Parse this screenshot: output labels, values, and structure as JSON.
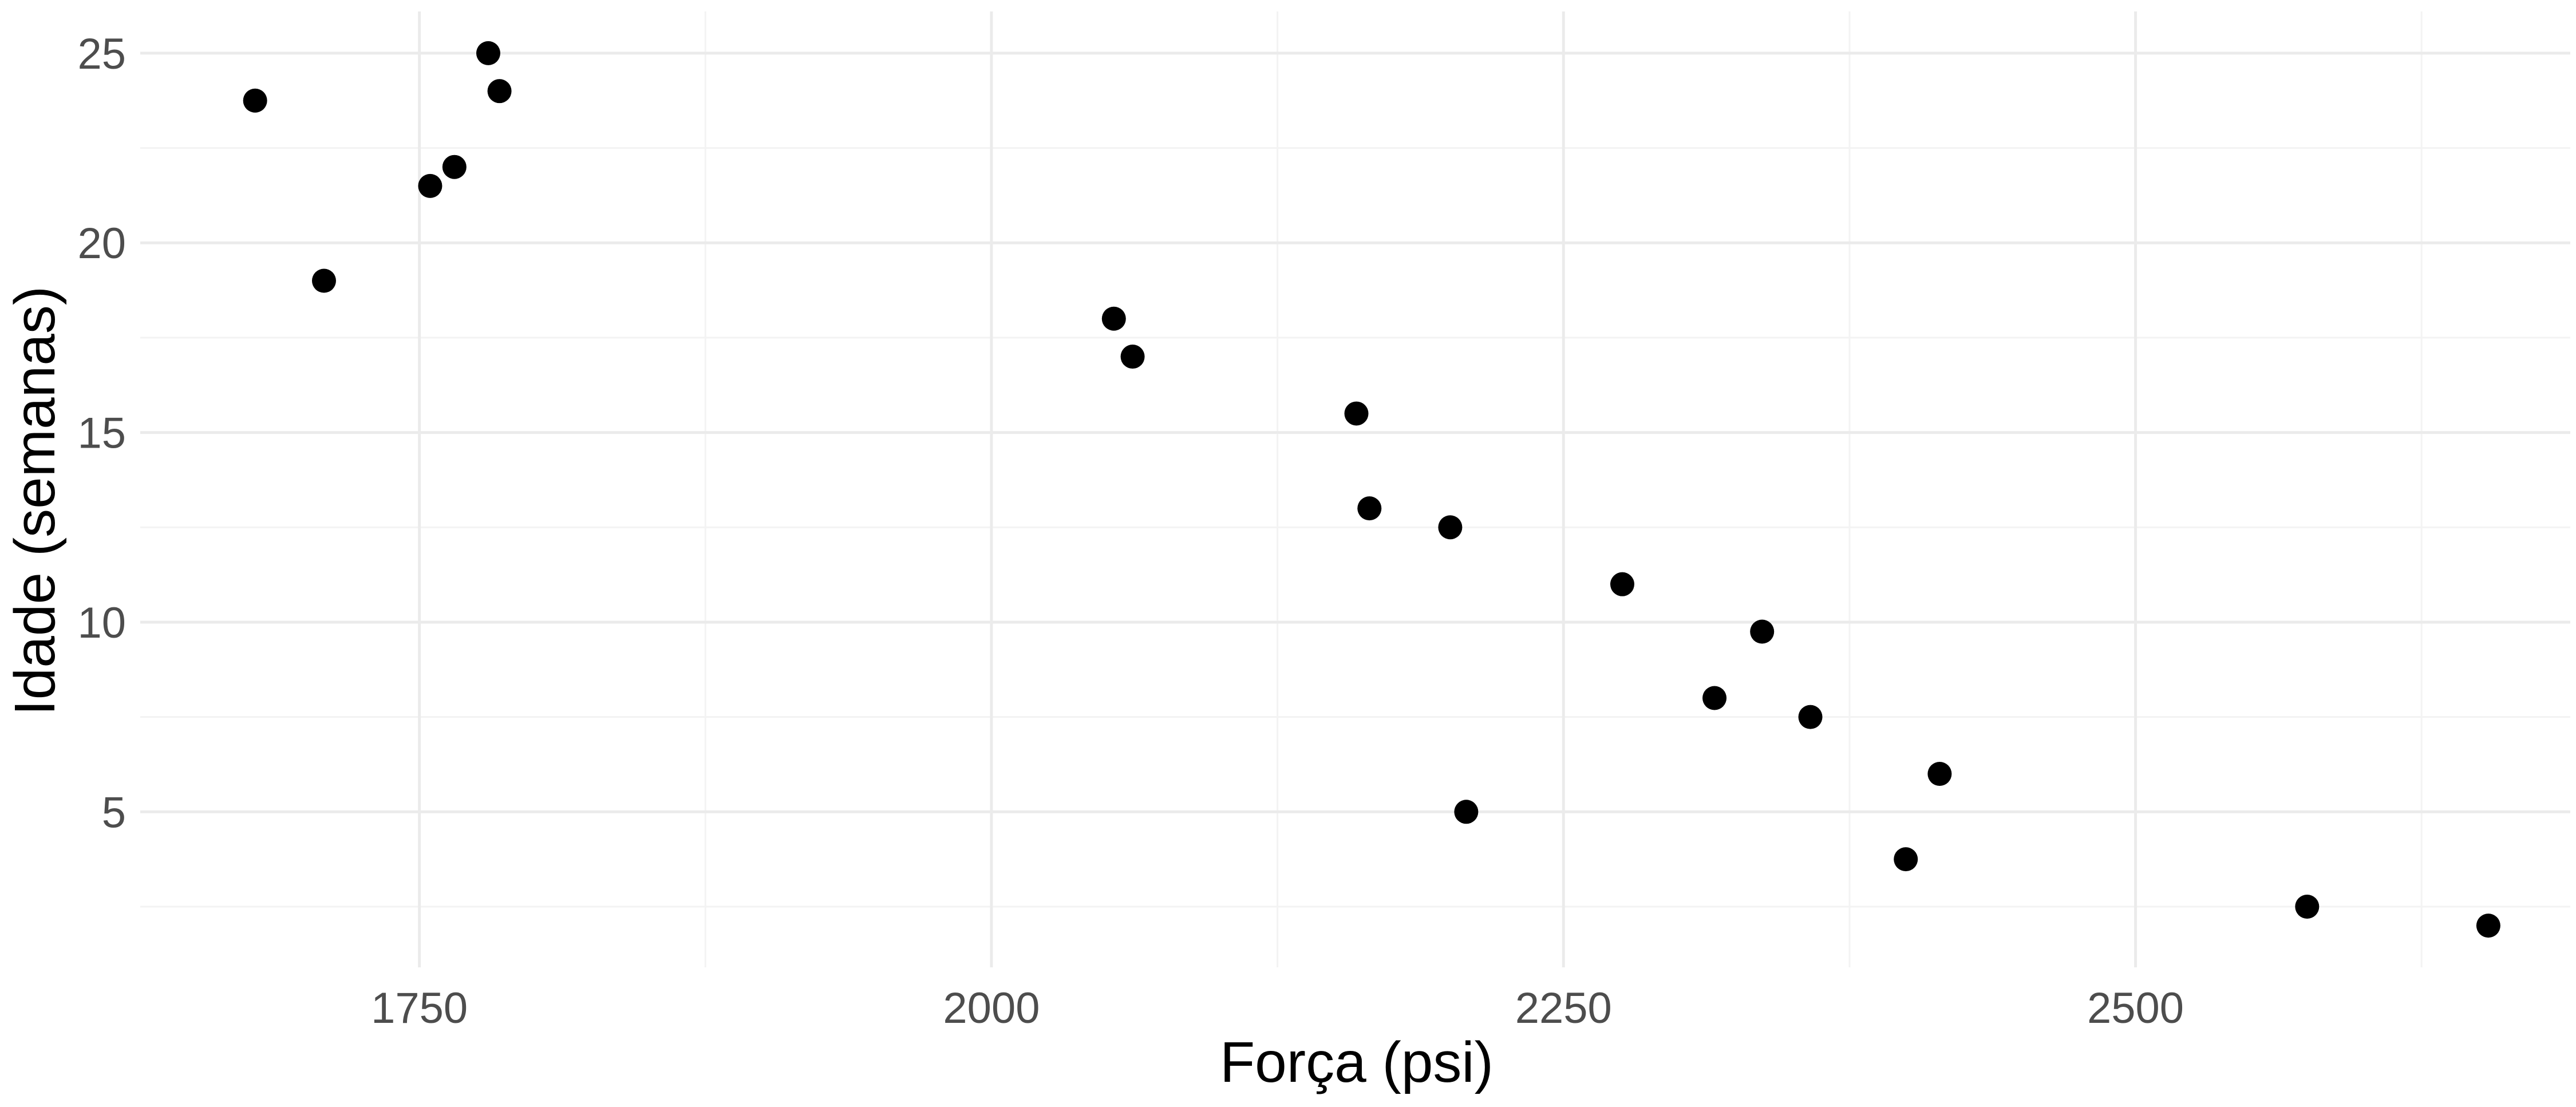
{
  "chart_data": {
    "type": "scatter",
    "title": "",
    "xlabel": "Força (psi)",
    "ylabel": "Idade (semanas)",
    "xlim": [
      1628,
      2690
    ],
    "ylim": [
      0.9,
      26.1
    ],
    "x_ticks": [
      1750,
      2000,
      2250,
      2500
    ],
    "x_minor_ticks": [
      1875,
      2125,
      2375,
      2625
    ],
    "y_ticks": [
      5,
      10,
      15,
      20,
      25
    ],
    "y_minor_ticks": [
      2.5,
      7.5,
      12.5,
      17.5,
      22.5
    ],
    "grid": true,
    "legend": "none",
    "colors": {
      "point": "#000000",
      "major_grid": "#ebebeb",
      "minor_grid": "#f3f3f3",
      "tick_text": "#4d4d4d"
    },
    "points": [
      {
        "x": 1678.2,
        "y": 23.75
      },
      {
        "x": 1708.3,
        "y": 19.0
      },
      {
        "x": 1754.7,
        "y": 21.5
      },
      {
        "x": 1765.3,
        "y": 22.0
      },
      {
        "x": 1780.1,
        "y": 25.0
      },
      {
        "x": 1785.0,
        "y": 24.0
      },
      {
        "x": 2053.5,
        "y": 18.0
      },
      {
        "x": 2061.7,
        "y": 17.0
      },
      {
        "x": 2159.5,
        "y": 15.5
      },
      {
        "x": 2165.2,
        "y": 13.0
      },
      {
        "x": 2200.5,
        "y": 12.5
      },
      {
        "x": 2207.5,
        "y": 5.0
      },
      {
        "x": 2275.7,
        "y": 11.0
      },
      {
        "x": 2316.0,
        "y": 8.0
      },
      {
        "x": 2336.8,
        "y": 9.75
      },
      {
        "x": 2357.9,
        "y": 7.5
      },
      {
        "x": 2399.6,
        "y": 3.75
      },
      {
        "x": 2414.4,
        "y": 6.0
      },
      {
        "x": 2575.0,
        "y": 2.5
      },
      {
        "x": 2654.2,
        "y": 2.0
      }
    ]
  }
}
